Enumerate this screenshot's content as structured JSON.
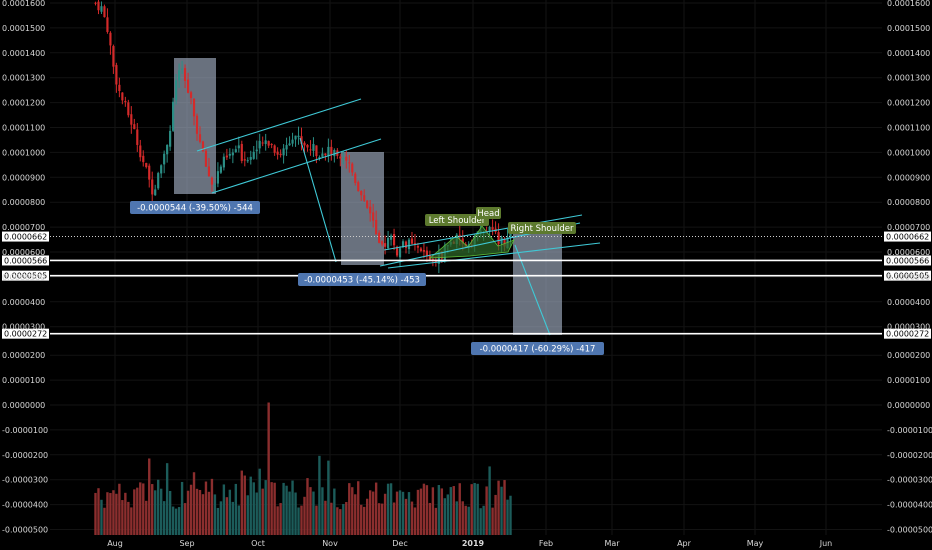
{
  "chart_data": {
    "type": "candlestick",
    "y_axis_price": {
      "ticks": [
        "0.0001600",
        "0.0001500",
        "0.0001400",
        "0.0001300",
        "0.0001200",
        "0.0001100",
        "0.0001000",
        "0.0000900",
        "0.0000800",
        "0.0000700",
        "0.0000600",
        "0.0000500",
        "0.0000400",
        "0.0000300"
      ],
      "tick_values": [
        0.00016,
        0.00015,
        0.00014,
        0.00013,
        0.00012,
        0.00011,
        0.0001,
        9e-05,
        8e-05,
        7e-05,
        6e-05,
        5e-05,
        4e-05,
        3e-05
      ]
    },
    "y_axis_volume": {
      "ticks": [
        "0.0000200",
        "0.0000100",
        "0.0000000",
        "-0.0000100",
        "-0.0000200",
        "-0.0000300",
        "-0.0000400",
        "-0.0000500"
      ],
      "tick_values": [
        2e-05,
        1e-05,
        0,
        -1e-05,
        -2e-05,
        -3e-05,
        -4e-05,
        -5e-05
      ]
    },
    "x_axis": {
      "ticks": [
        "Aug",
        "Sep",
        "Oct",
        "Nov",
        "Dec",
        "2019",
        "Feb",
        "Mar",
        "Apr",
        "May",
        "Jun"
      ],
      "bold": [
        false,
        false,
        false,
        false,
        false,
        true,
        false,
        false,
        false,
        false,
        false
      ]
    },
    "price_levels": [
      {
        "label": "0.0000662",
        "value": 6.62e-05,
        "style": "dotted"
      },
      {
        "label": "0.0000566",
        "value": 5.66e-05,
        "style": "solid"
      },
      {
        "label": "0.0000505",
        "value": 5.05e-05,
        "style": "solid"
      },
      {
        "label": "0.0000272",
        "value": 2.72e-05,
        "style": "solid"
      }
    ],
    "measurements": [
      {
        "label": "-0.0000544 (-39.50%) -544"
      },
      {
        "label": "-0.0000453 (-45.14%) -453"
      },
      {
        "label": "-0.0000417 (-60.29%) -417"
      }
    ],
    "pattern_labels": [
      "Left Shoulder",
      "Head",
      "Right Shoulder"
    ],
    "colors": {
      "up": "#2b8f86",
      "down": "#d42a2a",
      "trendline": "#3fc9d6",
      "measure_box": "#a9b7cc",
      "measure_label": "#4f76b0",
      "pattern_fill": "#2f6b2a",
      "pattern_label": "#5d7a2e",
      "vol_up": "#1c5c5a",
      "vol_down": "#8b2e2e"
    }
  }
}
